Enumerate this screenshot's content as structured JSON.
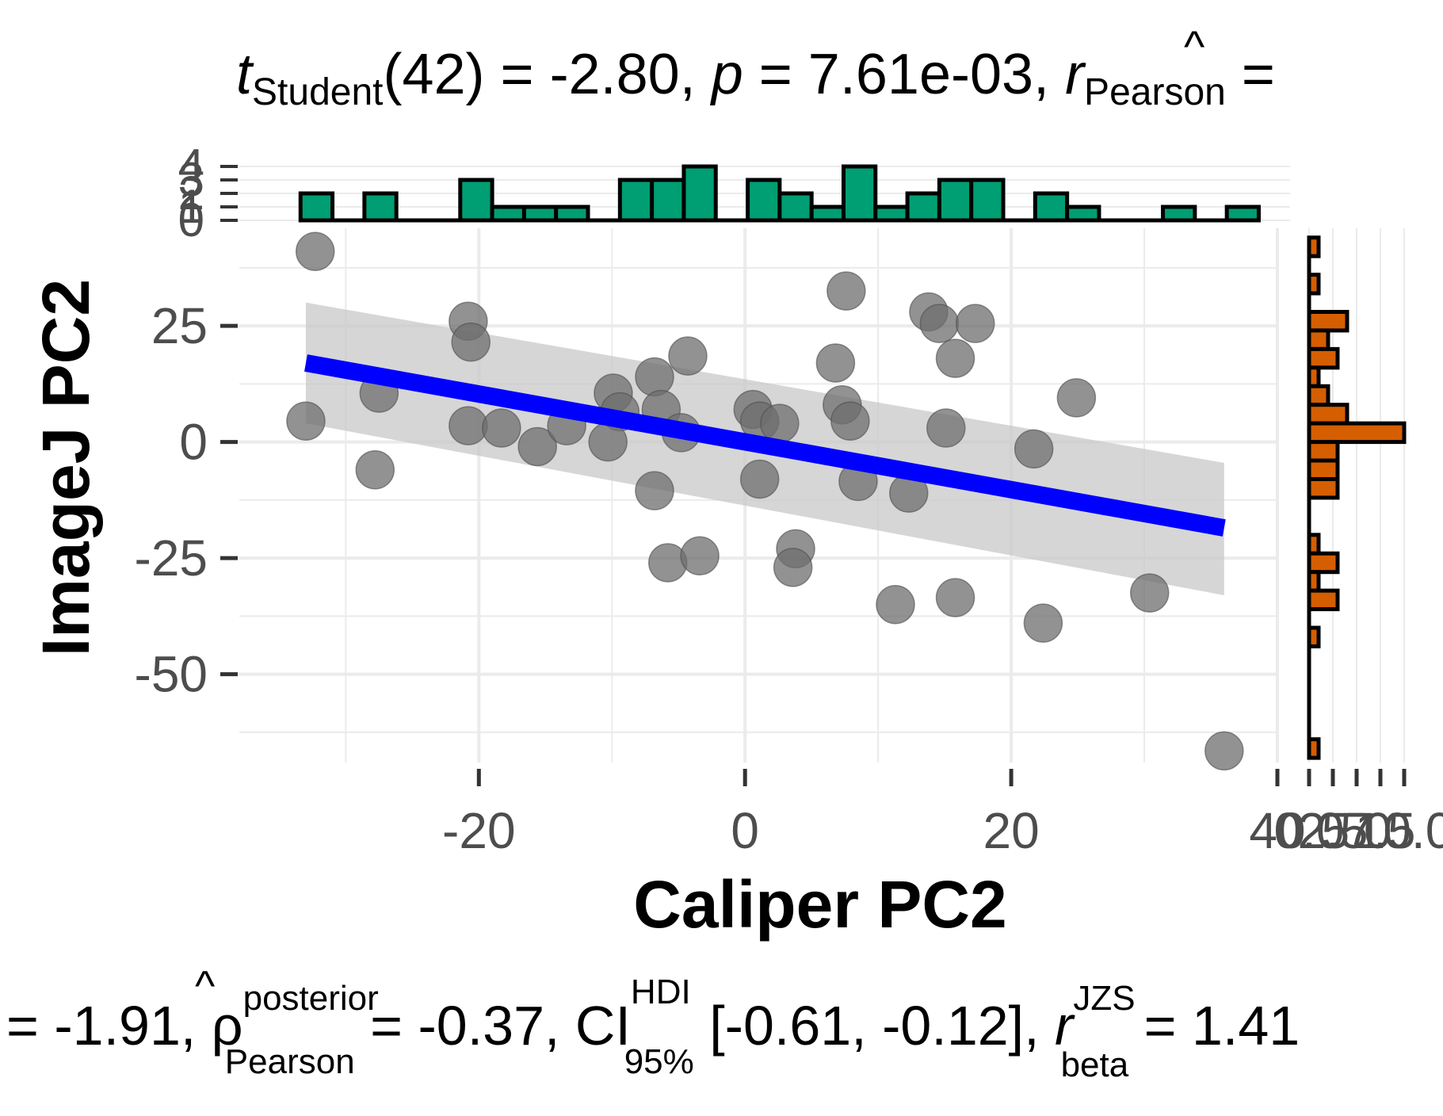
{
  "chart_data": {
    "type": "scatter",
    "title": "t_Student(42) = -2.80, p = 7.61e-03, r̂_Pearson = ...",
    "title_parts": {
      "t": "t",
      "t_sub": "Student",
      "t_rest": "(42) = -2.80, ",
      "p": "p",
      "p_rest": " = 7.61e-03, ",
      "r": "r",
      "r_sub": "Pearson",
      "r_rest": " ="
    },
    "caption": "= -1.91, ρ̂posterior Pearson = -0.37, CI HDI 95% [-0.61, -0.12], r JZS beta = 1.41",
    "caption_parts": {
      "lead": "= -1.91, ",
      "rho": "ρ",
      "rho_sup": "posterior",
      "rho_sub": "Pearson",
      "rho_rest": " = -0.37, CI",
      "ci_sup": "HDI",
      "ci_sub": "95%",
      "ci_rest": " [-0.61, -0.12], ",
      "r": "r",
      "r_sup": "JZS",
      "r_sub": "beta",
      "r_rest": " = 1.41"
    },
    "xlabel": "Caliper PC2",
    "ylabel": "ImageJ PC2",
    "xlim": [
      -38,
      40
    ],
    "ylim": [
      -69,
      46
    ],
    "x_ticks": [
      -20,
      0,
      20
    ],
    "y_ticks": [
      25,
      0,
      -25,
      -50
    ],
    "grid": true,
    "points": [
      {
        "x": -32.3,
        "y": 41.0
      },
      {
        "x": -33.0,
        "y": 4.5
      },
      {
        "x": -27.5,
        "y": 10.5
      },
      {
        "x": -27.8,
        "y": -6.0
      },
      {
        "x": -20.8,
        "y": 26.0
      },
      {
        "x": -20.6,
        "y": 21.5
      },
      {
        "x": -20.8,
        "y": 3.5
      },
      {
        "x": -18.3,
        "y": 3.0
      },
      {
        "x": -15.6,
        "y": -1.0
      },
      {
        "x": -13.4,
        "y": 3.5
      },
      {
        "x": -9.9,
        "y": 10.5
      },
      {
        "x": -9.4,
        "y": 6.5
      },
      {
        "x": -10.3,
        "y": 0.0
      },
      {
        "x": -6.8,
        "y": 14.0
      },
      {
        "x": -6.3,
        "y": 7.0
      },
      {
        "x": -4.3,
        "y": 18.5
      },
      {
        "x": -4.8,
        "y": 2.0
      },
      {
        "x": -6.8,
        "y": -10.5
      },
      {
        "x": -5.8,
        "y": -26.0
      },
      {
        "x": -3.4,
        "y": -24.5
      },
      {
        "x": 0.6,
        "y": 7.0
      },
      {
        "x": 1.1,
        "y": 4.5
      },
      {
        "x": 2.6,
        "y": 4.0
      },
      {
        "x": 1.1,
        "y": -8.0
      },
      {
        "x": 3.8,
        "y": -23.0
      },
      {
        "x": 3.6,
        "y": -27.0
      },
      {
        "x": 7.6,
        "y": 32.5
      },
      {
        "x": 6.8,
        "y": 17.0
      },
      {
        "x": 7.3,
        "y": 8.0
      },
      {
        "x": 7.9,
        "y": 4.5
      },
      {
        "x": 8.5,
        "y": -8.5
      },
      {
        "x": 11.3,
        "y": -35.0
      },
      {
        "x": 12.3,
        "y": -11.0
      },
      {
        "x": 13.8,
        "y": 28.0
      },
      {
        "x": 14.6,
        "y": 25.5
      },
      {
        "x": 17.3,
        "y": 25.5
      },
      {
        "x": 15.8,
        "y": 18.0
      },
      {
        "x": 15.1,
        "y": 3.0
      },
      {
        "x": 15.8,
        "y": -33.5
      },
      {
        "x": 21.7,
        "y": -1.5
      },
      {
        "x": 22.4,
        "y": -39.0
      },
      {
        "x": 24.9,
        "y": 9.5
      },
      {
        "x": 30.4,
        "y": -32.5
      },
      {
        "x": 36.0,
        "y": -66.5
      }
    ],
    "fit": {
      "x": [
        -33.0,
        36.0
      ],
      "y": [
        17.0,
        -18.5
      ]
    },
    "ci_band": {
      "x": [
        -33.0,
        36.0
      ],
      "upper": [
        30.0,
        -4.5
      ],
      "lower": [
        4.0,
        -33.0
      ]
    },
    "x_histogram": [
      {
        "x": -32.2,
        "count": 2
      },
      {
        "x": -29.8,
        "count": 0
      },
      {
        "x": -27.4,
        "count": 2
      },
      {
        "x": -25.0,
        "count": 0
      },
      {
        "x": -22.6,
        "count": 0
      },
      {
        "x": -20.2,
        "count": 3
      },
      {
        "x": -17.8,
        "count": 1
      },
      {
        "x": -15.4,
        "count": 1
      },
      {
        "x": -13.0,
        "count": 1
      },
      {
        "x": -10.6,
        "count": 0
      },
      {
        "x": -8.2,
        "count": 3
      },
      {
        "x": -5.8,
        "count": 3
      },
      {
        "x": -3.4,
        "count": 4
      },
      {
        "x": -1.0,
        "count": 0
      },
      {
        "x": 1.4,
        "count": 3
      },
      {
        "x": 3.8,
        "count": 2
      },
      {
        "x": 6.2,
        "count": 1
      },
      {
        "x": 8.6,
        "count": 4
      },
      {
        "x": 11.0,
        "count": 1
      },
      {
        "x": 13.4,
        "count": 2
      },
      {
        "x": 15.8,
        "count": 3
      },
      {
        "x": 18.2,
        "count": 3
      },
      {
        "x": 20.6,
        "count": 0
      },
      {
        "x": 23.0,
        "count": 2
      },
      {
        "x": 25.4,
        "count": 1
      },
      {
        "x": 27.8,
        "count": 0
      },
      {
        "x": 30.2,
        "count": 0
      },
      {
        "x": 32.6,
        "count": 1
      },
      {
        "x": 35.0,
        "count": 0
      },
      {
        "x": 37.4,
        "count": 1
      }
    ],
    "x_hist_ticks": [
      "0",
      "1",
      "2",
      "3",
      "4"
    ],
    "y_histogram": [
      {
        "y": 42,
        "count": 1
      },
      {
        "y": 38,
        "count": 0
      },
      {
        "y": 34,
        "count": 1
      },
      {
        "y": 30,
        "count": 0
      },
      {
        "y": 26,
        "count": 4
      },
      {
        "y": 22,
        "count": 2
      },
      {
        "y": 18,
        "count": 3
      },
      {
        "y": 14,
        "count": 1
      },
      {
        "y": 10,
        "count": 2
      },
      {
        "y": 6,
        "count": 4
      },
      {
        "y": 2,
        "count": 10
      },
      {
        "y": -2,
        "count": 3
      },
      {
        "y": -6,
        "count": 3
      },
      {
        "y": -10,
        "count": 3
      },
      {
        "y": -14,
        "count": 0
      },
      {
        "y": -18,
        "count": 0
      },
      {
        "y": -22,
        "count": 1
      },
      {
        "y": -26,
        "count": 3
      },
      {
        "y": -30,
        "count": 1
      },
      {
        "y": -34,
        "count": 3
      },
      {
        "y": -38,
        "count": 0
      },
      {
        "y": -42,
        "count": 1
      },
      {
        "y": -46,
        "count": 0
      },
      {
        "y": -50,
        "count": 0
      },
      {
        "y": -54,
        "count": 0
      },
      {
        "y": -58,
        "count": 0
      },
      {
        "y": -62,
        "count": 0
      },
      {
        "y": -66,
        "count": 1
      }
    ],
    "y_hist_ticks": [
      "40",
      "0.0",
      "2.5",
      "5.0",
      "7.5",
      "10.0"
    ],
    "colors": {
      "point": "#6e6e6e",
      "fit_line": "#0000ff",
      "ci_band": "#c8c8c8",
      "x_hist_fill": "#009e73",
      "y_hist_fill": "#d55e00",
      "grid": "#ebebeb"
    }
  }
}
